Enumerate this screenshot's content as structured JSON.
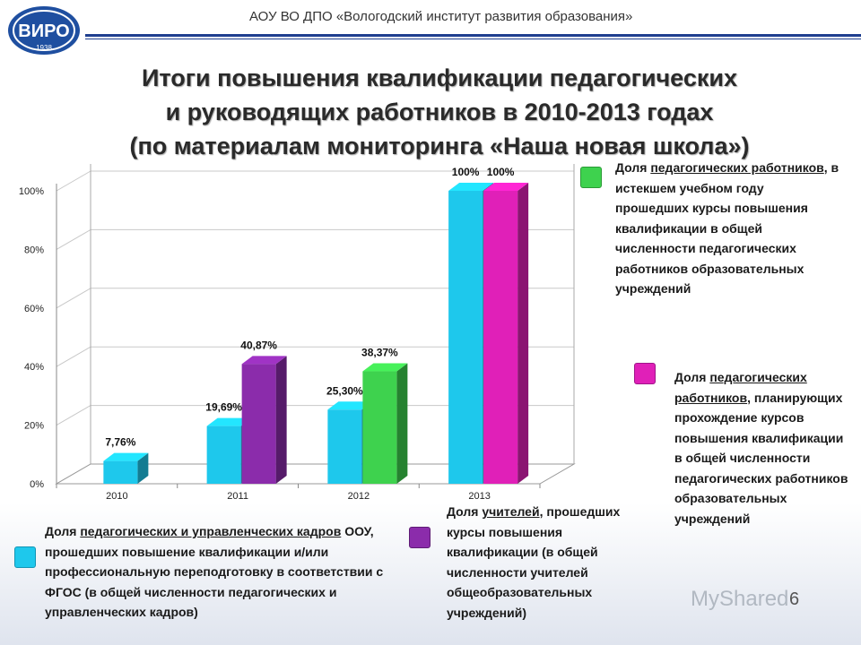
{
  "header": {
    "org": "АОУ ВО ДПО «Вологодский институт развития образования»",
    "logo_text": "ВИРО",
    "logo_year": "1938"
  },
  "title": {
    "line1": "Итоги повышения квалификации педагогических",
    "line2": "и руководящих работников в 2010-2013 годах",
    "line3": "(по материалам мониторинга «Наша новая школа»)"
  },
  "chart_data": {
    "type": "bar",
    "categories": [
      "2010",
      "2011",
      "2012",
      "2013"
    ],
    "ylim": [
      0,
      100
    ],
    "yticks": [
      "0%",
      "20%",
      "40%",
      "60%",
      "80%",
      "100%"
    ],
    "series": [
      {
        "key": "cyan",
        "color": "#1ec8ec",
        "values": [
          7.76,
          19.69,
          25.3,
          100
        ],
        "labels": [
          "7,76%",
          "19,69%",
          "25,30%",
          "100%"
        ]
      },
      {
        "key": "purple",
        "color": "#8b2cab",
        "values": [
          null,
          40.87,
          null,
          null
        ],
        "labels": [
          null,
          "40,87%",
          null,
          null
        ]
      },
      {
        "key": "green",
        "color": "#3ed24e",
        "values": [
          null,
          null,
          38.37,
          null
        ],
        "labels": [
          null,
          null,
          "38,37%",
          null
        ]
      },
      {
        "key": "magenta",
        "color": "#e020b8",
        "values": [
          null,
          null,
          null,
          100
        ],
        "labels": [
          null,
          null,
          null,
          "100%"
        ]
      }
    ]
  },
  "legends": {
    "green": {
      "color": "#3ed24e",
      "pre": "Доля ",
      "u": "педагогических работников",
      "post": ", в истекшем учебном году прошедших курсы повышения квалификации в общей численности педагогических работников образовательных учреждений"
    },
    "magenta": {
      "color": "#e020b8",
      "pre": "Доля ",
      "u": "педагогических работников",
      "post": ", планирующих прохождение курсов повышения квалификации в общей численности педагогических работников образовательных учреждений"
    },
    "cyan": {
      "color": "#1ec8ec",
      "pre": "Доля ",
      "u": "педагогических и управленческих кадров",
      "post": " ООУ, прошедших повышение квалификации и/или профессиональную переподготовку в соответствии с ФГОС (в общей численности педагогических и управленческих кадров)"
    },
    "purple": {
      "color": "#8b2cab",
      "pre": "Доля ",
      "u": "учителей",
      "post": ", прошедших курсы повышения квалификации (в общей численности учителей общеобразовательных учреждений)"
    }
  },
  "page_number": "6",
  "watermark": "MyShared"
}
